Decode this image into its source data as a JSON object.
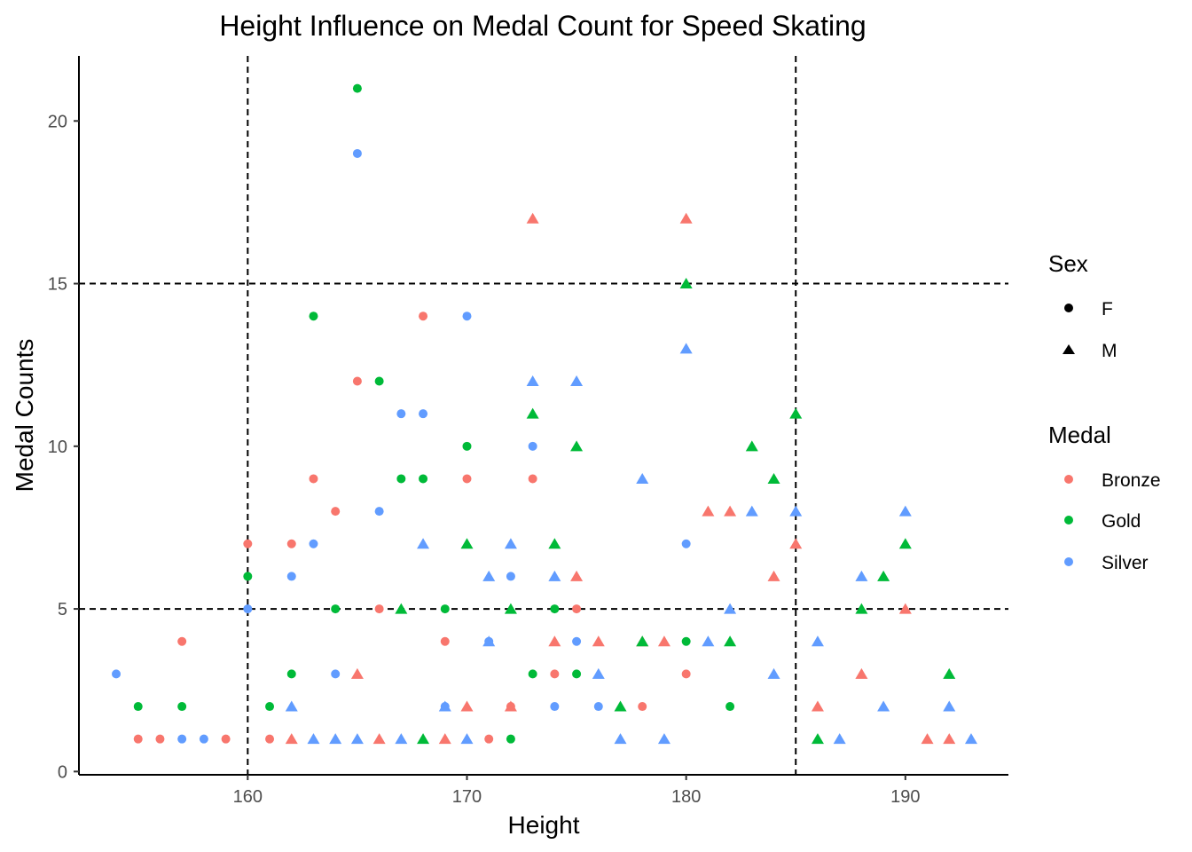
{
  "chart_data": {
    "type": "scatter",
    "title": "Height Influence on Medal Count for Speed Skating",
    "xlabel": "Height",
    "ylabel": "Medal Counts",
    "xlim": [
      152.3,
      194.7
    ],
    "ylim": [
      -0.1,
      22.0
    ],
    "x_ticks": [
      160,
      170,
      180,
      190
    ],
    "y_ticks": [
      0,
      5,
      10,
      15,
      20
    ],
    "grid": false,
    "reference_lines": {
      "vertical": [
        160,
        185
      ],
      "horizontal": [
        5,
        15
      ],
      "style": "dashed"
    },
    "legends": [
      {
        "title": "Sex",
        "entries": [
          {
            "label": "F",
            "shape": "circle"
          },
          {
            "label": "M",
            "shape": "triangle"
          }
        ]
      },
      {
        "title": "Medal",
        "entries": [
          {
            "label": "Bronze",
            "color": "#F8766D"
          },
          {
            "label": "Gold",
            "color": "#00BA38"
          },
          {
            "label": "Silver",
            "color": "#619CFF"
          }
        ]
      }
    ],
    "legend_position": "right",
    "series": [
      {
        "name": "Bronze",
        "color": "#F8766D",
        "points": [
          {
            "x": 155,
            "y": 1,
            "sex": "F"
          },
          {
            "x": 156,
            "y": 1,
            "sex": "F"
          },
          {
            "x": 157,
            "y": 4,
            "sex": "F"
          },
          {
            "x": 159,
            "y": 1,
            "sex": "F"
          },
          {
            "x": 160,
            "y": 7,
            "sex": "F"
          },
          {
            "x": 161,
            "y": 1,
            "sex": "F"
          },
          {
            "x": 162,
            "y": 7,
            "sex": "F"
          },
          {
            "x": 163,
            "y": 9,
            "sex": "F"
          },
          {
            "x": 164,
            "y": 8,
            "sex": "F"
          },
          {
            "x": 165,
            "y": 12,
            "sex": "F"
          },
          {
            "x": 166,
            "y": 5,
            "sex": "F"
          },
          {
            "x": 168,
            "y": 14,
            "sex": "F"
          },
          {
            "x": 169,
            "y": 4,
            "sex": "F"
          },
          {
            "x": 170,
            "y": 9,
            "sex": "F"
          },
          {
            "x": 171,
            "y": 1,
            "sex": "F"
          },
          {
            "x": 172,
            "y": 2,
            "sex": "F"
          },
          {
            "x": 173,
            "y": 9,
            "sex": "F"
          },
          {
            "x": 174,
            "y": 3,
            "sex": "F"
          },
          {
            "x": 175,
            "y": 5,
            "sex": "F"
          },
          {
            "x": 178,
            "y": 2,
            "sex": "F"
          },
          {
            "x": 180,
            "y": 3,
            "sex": "F"
          },
          {
            "x": 162,
            "y": 1,
            "sex": "M"
          },
          {
            "x": 165,
            "y": 3,
            "sex": "M"
          },
          {
            "x": 166,
            "y": 1,
            "sex": "M"
          },
          {
            "x": 169,
            "y": 1,
            "sex": "M"
          },
          {
            "x": 170,
            "y": 2,
            "sex": "M"
          },
          {
            "x": 172,
            "y": 2,
            "sex": "M"
          },
          {
            "x": 173,
            "y": 17,
            "sex": "M"
          },
          {
            "x": 174,
            "y": 4,
            "sex": "M"
          },
          {
            "x": 175,
            "y": 6,
            "sex": "M"
          },
          {
            "x": 176,
            "y": 4,
            "sex": "M"
          },
          {
            "x": 178,
            "y": 4,
            "sex": "M"
          },
          {
            "x": 179,
            "y": 4,
            "sex": "M"
          },
          {
            "x": 180,
            "y": 17,
            "sex": "M"
          },
          {
            "x": 181,
            "y": 8,
            "sex": "M"
          },
          {
            "x": 182,
            "y": 8,
            "sex": "M"
          },
          {
            "x": 184,
            "y": 6,
            "sex": "M"
          },
          {
            "x": 185,
            "y": 7,
            "sex": "M"
          },
          {
            "x": 186,
            "y": 2,
            "sex": "M"
          },
          {
            "x": 188,
            "y": 3,
            "sex": "M"
          },
          {
            "x": 190,
            "y": 5,
            "sex": "M"
          },
          {
            "x": 191,
            "y": 1,
            "sex": "M"
          },
          {
            "x": 192,
            "y": 1,
            "sex": "M"
          }
        ]
      },
      {
        "name": "Gold",
        "color": "#00BA38",
        "points": [
          {
            "x": 155,
            "y": 2,
            "sex": "F"
          },
          {
            "x": 157,
            "y": 2,
            "sex": "F"
          },
          {
            "x": 160,
            "y": 6,
            "sex": "F"
          },
          {
            "x": 161,
            "y": 2,
            "sex": "F"
          },
          {
            "x": 162,
            "y": 3,
            "sex": "F"
          },
          {
            "x": 163,
            "y": 14,
            "sex": "F"
          },
          {
            "x": 164,
            "y": 5,
            "sex": "F"
          },
          {
            "x": 165,
            "y": 21,
            "sex": "F"
          },
          {
            "x": 166,
            "y": 12,
            "sex": "F"
          },
          {
            "x": 167,
            "y": 9,
            "sex": "F"
          },
          {
            "x": 168,
            "y": 9,
            "sex": "F"
          },
          {
            "x": 169,
            "y": 5,
            "sex": "F"
          },
          {
            "x": 170,
            "y": 10,
            "sex": "F"
          },
          {
            "x": 172,
            "y": 1,
            "sex": "F"
          },
          {
            "x": 173,
            "y": 3,
            "sex": "F"
          },
          {
            "x": 174,
            "y": 5,
            "sex": "F"
          },
          {
            "x": 175,
            "y": 3,
            "sex": "F"
          },
          {
            "x": 180,
            "y": 4,
            "sex": "F"
          },
          {
            "x": 182,
            "y": 2,
            "sex": "F"
          },
          {
            "x": 167,
            "y": 5,
            "sex": "M"
          },
          {
            "x": 168,
            "y": 1,
            "sex": "M"
          },
          {
            "x": 170,
            "y": 7,
            "sex": "M"
          },
          {
            "x": 172,
            "y": 5,
            "sex": "M"
          },
          {
            "x": 173,
            "y": 11,
            "sex": "M"
          },
          {
            "x": 174,
            "y": 7,
            "sex": "M"
          },
          {
            "x": 175,
            "y": 10,
            "sex": "M"
          },
          {
            "x": 177,
            "y": 2,
            "sex": "M"
          },
          {
            "x": 178,
            "y": 4,
            "sex": "M"
          },
          {
            "x": 180,
            "y": 15,
            "sex": "M"
          },
          {
            "x": 182,
            "y": 4,
            "sex": "M"
          },
          {
            "x": 183,
            "y": 10,
            "sex": "M"
          },
          {
            "x": 184,
            "y": 9,
            "sex": "M"
          },
          {
            "x": 185,
            "y": 11,
            "sex": "M"
          },
          {
            "x": 186,
            "y": 1,
            "sex": "M"
          },
          {
            "x": 188,
            "y": 5,
            "sex": "M"
          },
          {
            "x": 189,
            "y": 6,
            "sex": "M"
          },
          {
            "x": 190,
            "y": 7,
            "sex": "M"
          },
          {
            "x": 192,
            "y": 3,
            "sex": "M"
          }
        ]
      },
      {
        "name": "Silver",
        "color": "#619CFF",
        "points": [
          {
            "x": 154,
            "y": 3,
            "sex": "F"
          },
          {
            "x": 157,
            "y": 1,
            "sex": "F"
          },
          {
            "x": 158,
            "y": 1,
            "sex": "F"
          },
          {
            "x": 160,
            "y": 5,
            "sex": "F"
          },
          {
            "x": 162,
            "y": 6,
            "sex": "F"
          },
          {
            "x": 163,
            "y": 7,
            "sex": "F"
          },
          {
            "x": 164,
            "y": 3,
            "sex": "F"
          },
          {
            "x": 165,
            "y": 19,
            "sex": "F"
          },
          {
            "x": 166,
            "y": 8,
            "sex": "F"
          },
          {
            "x": 167,
            "y": 11,
            "sex": "F"
          },
          {
            "x": 168,
            "y": 11,
            "sex": "F"
          },
          {
            "x": 169,
            "y": 2,
            "sex": "F"
          },
          {
            "x": 170,
            "y": 14,
            "sex": "F"
          },
          {
            "x": 171,
            "y": 4,
            "sex": "F"
          },
          {
            "x": 172,
            "y": 6,
            "sex": "F"
          },
          {
            "x": 173,
            "y": 10,
            "sex": "F"
          },
          {
            "x": 174,
            "y": 2,
            "sex": "F"
          },
          {
            "x": 175,
            "y": 4,
            "sex": "F"
          },
          {
            "x": 176,
            "y": 2,
            "sex": "F"
          },
          {
            "x": 180,
            "y": 7,
            "sex": "F"
          },
          {
            "x": 162,
            "y": 2,
            "sex": "M"
          },
          {
            "x": 163,
            "y": 1,
            "sex": "M"
          },
          {
            "x": 164,
            "y": 1,
            "sex": "M"
          },
          {
            "x": 165,
            "y": 1,
            "sex": "M"
          },
          {
            "x": 167,
            "y": 1,
            "sex": "M"
          },
          {
            "x": 168,
            "y": 7,
            "sex": "M"
          },
          {
            "x": 169,
            "y": 2,
            "sex": "M"
          },
          {
            "x": 170,
            "y": 1,
            "sex": "M"
          },
          {
            "x": 171,
            "y": 6,
            "sex": "M"
          },
          {
            "x": 171,
            "y": 4,
            "sex": "M"
          },
          {
            "x": 172,
            "y": 7,
            "sex": "M"
          },
          {
            "x": 173,
            "y": 12,
            "sex": "M"
          },
          {
            "x": 174,
            "y": 6,
            "sex": "M"
          },
          {
            "x": 175,
            "y": 12,
            "sex": "M"
          },
          {
            "x": 176,
            "y": 3,
            "sex": "M"
          },
          {
            "x": 177,
            "y": 1,
            "sex": "M"
          },
          {
            "x": 178,
            "y": 9,
            "sex": "M"
          },
          {
            "x": 179,
            "y": 1,
            "sex": "M"
          },
          {
            "x": 180,
            "y": 13,
            "sex": "M"
          },
          {
            "x": 181,
            "y": 4,
            "sex": "M"
          },
          {
            "x": 182,
            "y": 5,
            "sex": "M"
          },
          {
            "x": 183,
            "y": 8,
            "sex": "M"
          },
          {
            "x": 184,
            "y": 3,
            "sex": "M"
          },
          {
            "x": 185,
            "y": 8,
            "sex": "M"
          },
          {
            "x": 186,
            "y": 4,
            "sex": "M"
          },
          {
            "x": 187,
            "y": 1,
            "sex": "M"
          },
          {
            "x": 188,
            "y": 6,
            "sex": "M"
          },
          {
            "x": 189,
            "y": 2,
            "sex": "M"
          },
          {
            "x": 190,
            "y": 8,
            "sex": "M"
          },
          {
            "x": 192,
            "y": 2,
            "sex": "M"
          },
          {
            "x": 193,
            "y": 1,
            "sex": "M"
          }
        ]
      }
    ]
  }
}
